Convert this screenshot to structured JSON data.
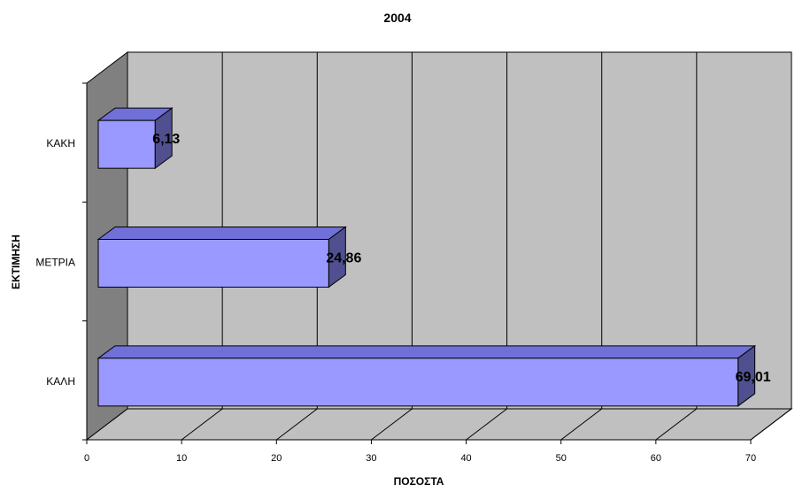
{
  "chart_data": {
    "type": "bar",
    "orientation": "horizontal",
    "three_d": true,
    "title": "2004",
    "xlabel": "ΠΟΣΟΣΤΑ",
    "ylabel": "ΕΚΤΙΜΗΣΗ",
    "categories": [
      "ΚΑΚΗ",
      "ΜΕΤΡΙΑ",
      "ΚΑΛΗ"
    ],
    "values": [
      6.13,
      24.86,
      69.01
    ],
    "data_labels": [
      "6,13",
      "24,86",
      "69,01"
    ],
    "xlim": [
      0,
      70
    ],
    "xticks": [
      "0",
      "10",
      "20",
      "30",
      "40",
      "50",
      "60",
      "70"
    ],
    "grid": true,
    "legend": "none",
    "colors": {
      "bar_front": "#9999ff",
      "bar_top": "#7070d8",
      "bar_side": "#505090",
      "wall": "#c0c0c0",
      "side_wall": "#808080",
      "floor": "#c0c0c0"
    }
  }
}
